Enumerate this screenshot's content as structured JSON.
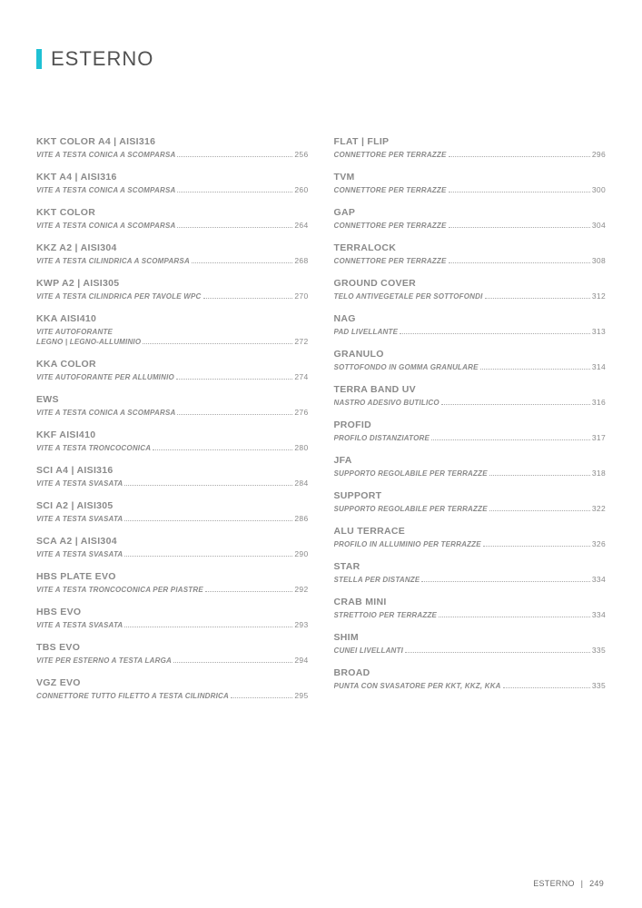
{
  "header": {
    "title": "ESTERNO"
  },
  "footer": {
    "section": "ESTERNO",
    "separator": "|",
    "page": "249"
  },
  "left": [
    {
      "title": "KKT COLOR A4 | AISI316",
      "desc": "VITE A TESTA CONICA A SCOMPARSA",
      "page": "256"
    },
    {
      "title": "KKT A4 | AISI316",
      "desc": "VITE A TESTA CONICA A SCOMPARSA",
      "page": "260"
    },
    {
      "title": "KKT COLOR",
      "desc": "VITE A TESTA CONICA A SCOMPARSA",
      "page": "264"
    },
    {
      "title": "KKZ A2 | AISI304",
      "desc": "VITE A TESTA CILINDRICA A SCOMPARSA",
      "page": "268"
    },
    {
      "title": "KWP A2 | AISI305",
      "desc": "VITE A TESTA CILINDRICA PER TAVOLE WPC",
      "page": "270"
    },
    {
      "title": "KKA AISI410",
      "desc": "VITE AUTOFORANTE\nLEGNO | LEGNO-ALLUMINIO",
      "page": "272",
      "wrap": true
    },
    {
      "title": "KKA COLOR",
      "desc": "VITE AUTOFORANTE PER ALLUMINIO",
      "page": "274"
    },
    {
      "title": "EWS",
      "desc": "VITE A TESTA CONICA A SCOMPARSA",
      "page": "276"
    },
    {
      "title": "KKF AISI410",
      "desc": "VITE A TESTA TRONCOCONICA",
      "page": "280"
    },
    {
      "title": "SCI A4 | AISI316",
      "desc": "VITE A TESTA SVASATA",
      "page": "284"
    },
    {
      "title": "SCI A2 | AISI305",
      "desc": "VITE A TESTA SVASATA",
      "page": "286"
    },
    {
      "title": "SCA A2 | AISI304",
      "desc": "VITE A TESTA SVASATA",
      "page": "290"
    },
    {
      "title": "HBS PLATE EVO",
      "desc": "VITE A TESTA TRONCOCONICA PER PIASTRE",
      "page": "292"
    },
    {
      "title": "HBS EVO",
      "desc": "VITE A TESTA SVASATA",
      "page": "293"
    },
    {
      "title": "TBS EVO",
      "desc": "VITE PER ESTERNO A TESTA LARGA",
      "page": "294"
    },
    {
      "title": "VGZ EVO",
      "desc": "CONNETTORE TUTTO FILETTO A TESTA CILINDRICA",
      "page": "295",
      "wrap": true
    }
  ],
  "right": [
    {
      "title": "FLAT | FLIP",
      "desc": "CONNETTORE PER TERRAZZE",
      "page": "296"
    },
    {
      "title": "TVM",
      "desc": "CONNETTORE PER TERRAZZE",
      "page": "300"
    },
    {
      "title": "GAP",
      "desc": "CONNETTORE PER TERRAZZE",
      "page": "304"
    },
    {
      "title": "TERRALOCK",
      "desc": "CONNETTORE PER TERRAZZE",
      "page": "308"
    },
    {
      "title": "GROUND COVER",
      "desc": "TELO ANTIVEGETALE PER SOTTOFONDI",
      "page": "312"
    },
    {
      "title": "NAG",
      "desc": "PAD LIVELLANTE",
      "page": "313"
    },
    {
      "title": "GRANULO",
      "desc": "SOTTOFONDO IN GOMMA GRANULARE",
      "page": "314"
    },
    {
      "title": "TERRA BAND UV",
      "desc": "NASTRO ADESIVO BUTILICO",
      "page": "316"
    },
    {
      "title": "PROFID",
      "desc": "PROFILO DISTANZIATORE",
      "page": "317"
    },
    {
      "title": "JFA",
      "desc": "SUPPORTO REGOLABILE PER TERRAZZE",
      "page": "318"
    },
    {
      "title": "SUPPORT",
      "desc": "SUPPORTO REGOLABILE PER TERRAZZE",
      "page": "322"
    },
    {
      "title": "ALU TERRACE",
      "desc": "PROFILO IN ALLUMINIO PER TERRAZZE",
      "page": "326"
    },
    {
      "title": "STAR",
      "desc": "STELLA PER DISTANZE",
      "page": "334"
    },
    {
      "title": "CRAB MINI",
      "desc": "STRETTOIO PER TERRAZZE",
      "page": "334"
    },
    {
      "title": "SHIM",
      "desc": "CUNEI LIVELLANTI",
      "page": "335"
    },
    {
      "title": "BROAD",
      "desc": "PUNTA CON SVASATORE PER KKT, KKZ, KKA",
      "page": "335"
    }
  ]
}
